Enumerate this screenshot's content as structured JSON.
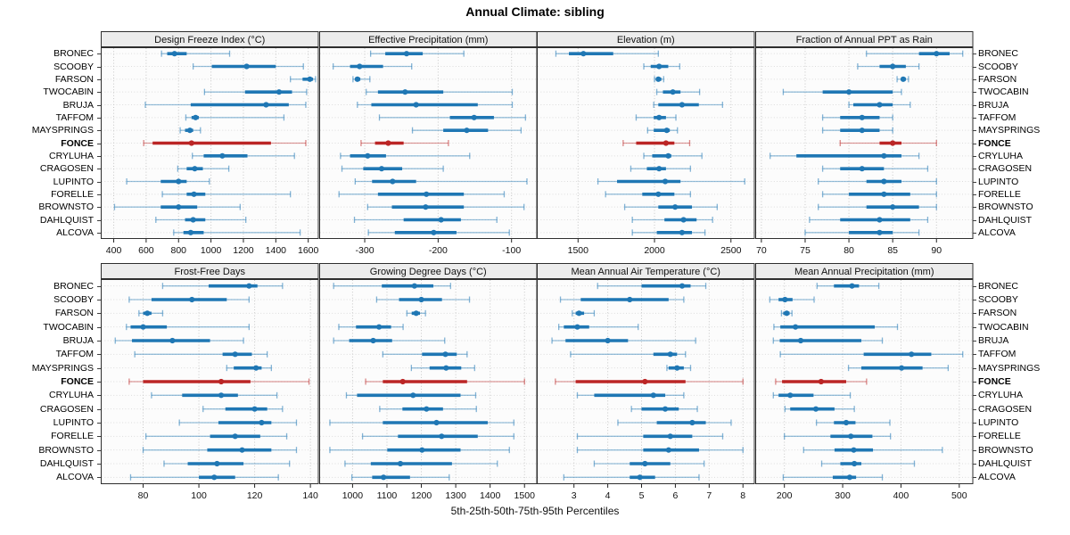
{
  "title": "Annual Climate: sibling",
  "footer": "5th-25th-50th-75th-95th Percentiles",
  "highlight_station": "FONCE",
  "colors": {
    "series": "#1f77b4",
    "highlight": "#bb2525",
    "header_bg": "#ececec",
    "border": "#2e2e2e",
    "grid_v": "#c6c6c6",
    "grid_h": "#dcdcdc",
    "plot_bg": "#fcfcfc"
  },
  "stations": [
    "BRONEC",
    "SCOOBY",
    "FARSON",
    "TWOCABIN",
    "BRUJA",
    "TAFFOM",
    "MAYSPRINGS",
    "FONCE",
    "CRYLUHA",
    "CRAGOSEN",
    "LUPINTO",
    "FORELLE",
    "BROWNSTO",
    "DAHLQUIST",
    "ALCOVA"
  ],
  "chart_data": [
    {
      "type": "percentile_range",
      "title": "Design Freeze Index (°C)",
      "xlim": [
        320,
        1665
      ],
      "ticks": [
        400,
        600,
        800,
        1000,
        1200,
        1400,
        1600
      ],
      "percentiles": [
        5,
        25,
        50,
        75,
        95
      ],
      "values": [
        [
          695,
          730,
          775,
          850,
          1115
        ],
        [
          890,
          1005,
          1220,
          1400,
          1570
        ],
        [
          1490,
          1565,
          1610,
          1630,
          1645
        ],
        [
          960,
          1210,
          1420,
          1500,
          1590
        ],
        [
          595,
          875,
          1340,
          1480,
          1585
        ],
        [
          845,
          880,
          905,
          925,
          1450
        ],
        [
          810,
          840,
          870,
          890,
          935
        ],
        [
          585,
          640,
          880,
          1370,
          1585
        ],
        [
          885,
          955,
          1070,
          1225,
          1515
        ],
        [
          795,
          850,
          900,
          950,
          1110
        ],
        [
          480,
          690,
          800,
          850,
          990
        ],
        [
          700,
          850,
          895,
          965,
          1490
        ],
        [
          405,
          690,
          800,
          915,
          1180
        ],
        [
          660,
          840,
          890,
          965,
          1215
        ],
        [
          770,
          830,
          875,
          955,
          1550
        ]
      ]
    },
    {
      "type": "percentile_range",
      "title": "Effective Precipitation (mm)",
      "xlim": [
        -362,
        -65
      ],
      "ticks": [
        -300,
        -200,
        -100
      ],
      "percentiles": [
        5,
        25,
        50,
        75,
        95
      ],
      "values": [
        [
          -292,
          -272,
          -243,
          -221,
          -165
        ],
        [
          -343,
          -320,
          -307,
          -275,
          -236
        ],
        [
          -316,
          -313,
          -310,
          -306,
          -293
        ],
        [
          -298,
          -282,
          -245,
          -193,
          -99
        ],
        [
          -310,
          -291,
          -230,
          -146,
          -99
        ],
        [
          -280,
          -184,
          -151,
          -124,
          -81
        ],
        [
          -235,
          -193,
          -161,
          -132,
          -87
        ],
        [
          -305,
          -286,
          -268,
          -247,
          -186
        ],
        [
          -333,
          -320,
          -296,
          -271,
          -157
        ],
        [
          -331,
          -302,
          -277,
          -249,
          -193
        ],
        [
          -313,
          -290,
          -262,
          -230,
          -79
        ],
        [
          -335,
          -282,
          -216,
          -165,
          -110
        ],
        [
          -296,
          -263,
          -217,
          -165,
          -83
        ],
        [
          -314,
          -247,
          -196,
          -169,
          -120
        ],
        [
          -295,
          -259,
          -206,
          -175,
          -103
        ]
      ]
    },
    {
      "type": "percentile_range",
      "title": "Elevation (m)",
      "xlim": [
        1230,
        2656
      ],
      "ticks": [
        1500,
        2000,
        2500
      ],
      "percentiles": [
        5,
        25,
        50,
        75,
        95
      ],
      "values": [
        [
          1355,
          1440,
          1535,
          1730,
          2025
        ],
        [
          1930,
          1975,
          2030,
          2090,
          2165
        ],
        [
          2000,
          2010,
          2025,
          2045,
          2060
        ],
        [
          2015,
          2055,
          2120,
          2170,
          2295
        ],
        [
          1995,
          2025,
          2180,
          2290,
          2445
        ],
        [
          1880,
          1995,
          2030,
          2075,
          2140
        ],
        [
          1955,
          1995,
          2080,
          2100,
          2150
        ],
        [
          1795,
          1880,
          2075,
          2130,
          2230
        ],
        [
          1930,
          1985,
          2090,
          2110,
          2310
        ],
        [
          1845,
          1950,
          2030,
          2075,
          2235
        ],
        [
          1630,
          1755,
          2070,
          2170,
          2590
        ],
        [
          1680,
          1920,
          2025,
          2130,
          2235
        ],
        [
          1805,
          2025,
          2135,
          2245,
          2410
        ],
        [
          1855,
          2065,
          2190,
          2275,
          2380
        ],
        [
          1855,
          2015,
          2180,
          2245,
          2330
        ]
      ]
    },
    {
      "type": "percentile_range",
      "title": "Fraction of Annual PPT as Rain",
      "xlim": [
        69.3,
        94.2
      ],
      "ticks": [
        70,
        75,
        80,
        85,
        90
      ],
      "percentiles": [
        5,
        25,
        50,
        75,
        95
      ],
      "values": [
        [
          82,
          88,
          90,
          91.5,
          93
        ],
        [
          81,
          83.5,
          85,
          86.5,
          88
        ],
        [
          85.5,
          86,
          86.2,
          86.5,
          86.8
        ],
        [
          72.5,
          77,
          80,
          85,
          86
        ],
        [
          80,
          80.5,
          83.5,
          85,
          87
        ],
        [
          77,
          79,
          81.5,
          83.5,
          85
        ],
        [
          77,
          79,
          81.5,
          83.5,
          85
        ],
        [
          79,
          83.5,
          85,
          86,
          90
        ],
        [
          71,
          74,
          84,
          86,
          88
        ],
        [
          77,
          79,
          81.5,
          84,
          89
        ],
        [
          76.5,
          82,
          84,
          86,
          90
        ],
        [
          77,
          80,
          84,
          87,
          90
        ],
        [
          76.5,
          82,
          85,
          88,
          90
        ],
        [
          75.5,
          79,
          83.5,
          87,
          89
        ],
        [
          75,
          80,
          83.5,
          85,
          88
        ]
      ]
    },
    {
      "type": "percentile_range",
      "title": "Frost-Free Days",
      "xlim": [
        64.8,
        143
      ],
      "ticks": [
        80,
        100,
        120,
        140
      ],
      "percentiles": [
        5,
        25,
        50,
        75,
        95
      ],
      "values": [
        [
          87,
          103.5,
          118,
          121,
          130
        ],
        [
          75,
          83,
          97.5,
          110,
          118
        ],
        [
          78.5,
          80,
          81.5,
          83,
          87
        ],
        [
          74,
          75.5,
          80,
          88.5,
          118
        ],
        [
          70,
          76,
          90.5,
          104,
          116
        ],
        [
          77,
          108.5,
          113,
          119,
          124.5
        ],
        [
          110,
          112.5,
          120.5,
          122.5,
          126
        ],
        [
          75,
          80,
          108,
          118.5,
          139.5
        ],
        [
          83,
          94,
          108,
          114,
          128
        ],
        [
          101.5,
          109.5,
          120,
          124.5,
          130
        ],
        [
          93,
          107,
          122.5,
          126,
          135
        ],
        [
          81,
          104,
          113,
          122,
          131.5
        ],
        [
          80,
          103,
          115.5,
          126,
          135
        ],
        [
          87.5,
          96,
          106.5,
          116,
          132.5
        ],
        [
          75.5,
          100,
          105.5,
          113,
          128.5
        ]
      ]
    },
    {
      "type": "percentile_range",
      "title": "Growing Degree Days (°C)",
      "xlim": [
        903,
        1537
      ],
      "ticks": [
        1000,
        1100,
        1200,
        1300,
        1400,
        1500
      ],
      "percentiles": [
        5,
        25,
        50,
        75,
        95
      ],
      "values": [
        [
          945,
          1085,
          1180,
          1235,
          1285
        ],
        [
          1070,
          1135,
          1200,
          1260,
          1340
        ],
        [
          1158,
          1172,
          1185,
          1196,
          1212
        ],
        [
          960,
          1010,
          1077,
          1112,
          1147
        ],
        [
          945,
          990,
          1060,
          1115,
          1268
        ],
        [
          1088,
          1202,
          1270,
          1303,
          1333
        ],
        [
          1171,
          1224,
          1272,
          1316,
          1355
        ],
        [
          1038,
          1088,
          1146,
          1333,
          1500
        ],
        [
          982,
          1013,
          1176,
          1314,
          1358
        ],
        [
          1079,
          1145,
          1215,
          1263,
          1360
        ],
        [
          934,
          1088,
          1244,
          1393,
          1469
        ],
        [
          1029,
          1132,
          1259,
          1364,
          1469
        ],
        [
          934,
          1101,
          1202,
          1314,
          1456
        ],
        [
          978,
          1053,
          1139,
          1289,
          1421
        ],
        [
          998,
          1057,
          1090,
          1167,
          1281
        ]
      ]
    },
    {
      "type": "percentile_range",
      "title": "Mean Annual Air Temperature (°C)",
      "xlim": [
        1.9,
        8.35
      ],
      "ticks": [
        3,
        4,
        5,
        6,
        7,
        8
      ],
      "percentiles": [
        5,
        25,
        50,
        75,
        95
      ],
      "values": [
        [
          3.7,
          5.0,
          6.2,
          6.45,
          6.9
        ],
        [
          2.6,
          3.2,
          4.65,
          5.8,
          6.25
        ],
        [
          2.95,
          3.05,
          3.15,
          3.3,
          3.6
        ],
        [
          2.55,
          2.7,
          3.1,
          3.45,
          4.9
        ],
        [
          2.35,
          2.75,
          4.0,
          4.6,
          6.6
        ],
        [
          2.9,
          5.35,
          5.85,
          6.05,
          6.3
        ],
        [
          5.75,
          5.8,
          6.05,
          6.25,
          6.45
        ],
        [
          2.45,
          3.05,
          5.1,
          6.3,
          8.0
        ],
        [
          3.1,
          3.6,
          5.35,
          5.7,
          6.25
        ],
        [
          4.7,
          5.0,
          5.7,
          6.1,
          6.65
        ],
        [
          4.3,
          5.45,
          6.5,
          6.9,
          7.65
        ],
        [
          3.1,
          5.05,
          5.85,
          6.5,
          7.4
        ],
        [
          3.1,
          5.05,
          5.8,
          6.7,
          8.0
        ],
        [
          3.6,
          4.65,
          5.1,
          5.85,
          6.85
        ],
        [
          2.7,
          4.65,
          4.95,
          5.4,
          6.7
        ]
      ]
    },
    {
      "type": "percentile_range",
      "title": "Mean Annual Precipitation (mm)",
      "xlim": [
        150,
        524
      ],
      "ticks": [
        200,
        300,
        400,
        500
      ],
      "percentiles": [
        5,
        25,
        50,
        75,
        95
      ],
      "values": [
        [
          256,
          285,
          316,
          328,
          362
        ],
        [
          175,
          190,
          201,
          214,
          251
        ],
        [
          195,
          198,
          204,
          209,
          213
        ],
        [
          182,
          193,
          219,
          355,
          394
        ],
        [
          181,
          192,
          228,
          332,
          368
        ],
        [
          193,
          336,
          418,
          452,
          506
        ],
        [
          310,
          332,
          401,
          437,
          481
        ],
        [
          185,
          196,
          263,
          306,
          341
        ],
        [
          181,
          190,
          210,
          250,
          313
        ],
        [
          201,
          210,
          254,
          286,
          320
        ],
        [
          255,
          285,
          306,
          322,
          381
        ],
        [
          200,
          279,
          314,
          351,
          382
        ],
        [
          233,
          286,
          319,
          352,
          471
        ],
        [
          264,
          296,
          320,
          332,
          423
        ],
        [
          198,
          283,
          312,
          323,
          368
        ]
      ]
    }
  ]
}
